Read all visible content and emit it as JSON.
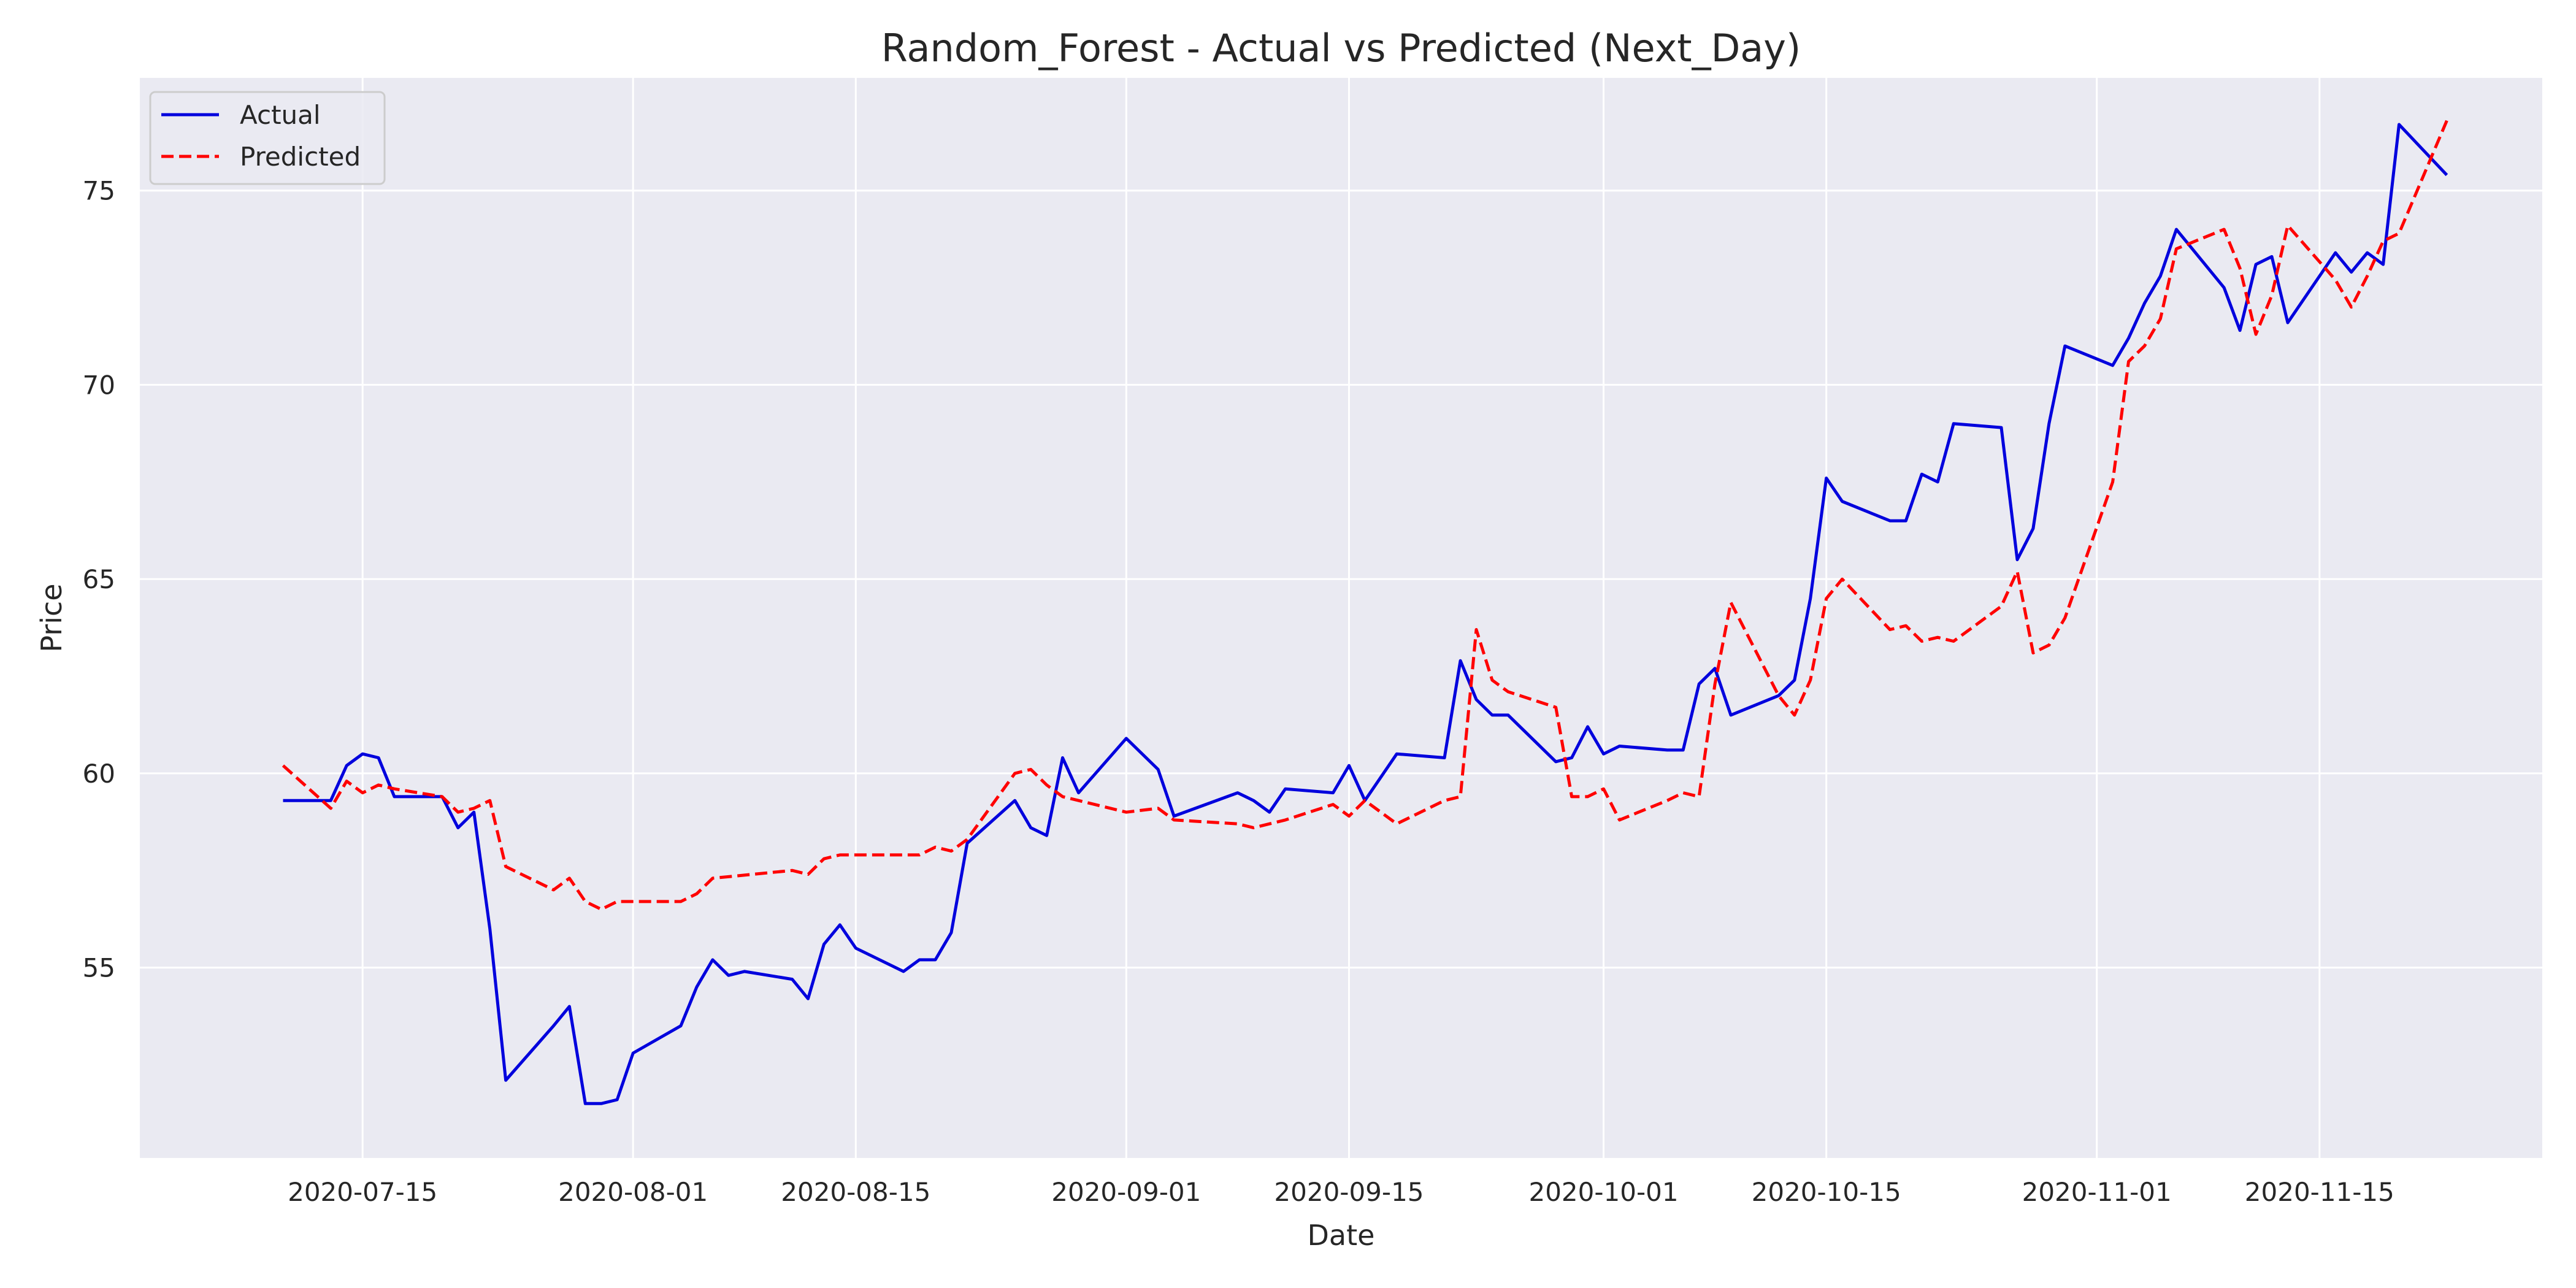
{
  "chart_data": {
    "type": "line",
    "title": "Random_Forest - Actual vs Predicted (Next_Day)",
    "xlabel": "Date",
    "ylabel": "Price",
    "xlim": [
      "2020-07-01",
      "2020-11-29"
    ],
    "ylim": [
      50.1,
      77.9
    ],
    "x_ticks": [
      "2020-07-15",
      "2020-08-01",
      "2020-08-15",
      "2020-09-01",
      "2020-09-15",
      "2020-10-01",
      "2020-10-15",
      "2020-11-01",
      "2020-11-15"
    ],
    "y_ticks": [
      55,
      60,
      65,
      70,
      75
    ],
    "grid": true,
    "legend_position": "top-left",
    "colors": {
      "background": "#eaeaf2",
      "grid": "#ffffff",
      "actual": "#0000dd",
      "predicted": "#ff0000"
    },
    "series": [
      {
        "name": "Actual",
        "style": "solid",
        "points": [
          [
            "2020-07-10",
            59.3
          ],
          [
            "2020-07-13",
            59.3
          ],
          [
            "2020-07-14",
            60.2
          ],
          [
            "2020-07-15",
            60.5
          ],
          [
            "2020-07-16",
            60.4
          ],
          [
            "2020-07-17",
            59.4
          ],
          [
            "2020-07-20",
            59.4
          ],
          [
            "2020-07-21",
            58.6
          ],
          [
            "2020-07-22",
            59.0
          ],
          [
            "2020-07-23",
            56.0
          ],
          [
            "2020-07-24",
            52.1
          ],
          [
            "2020-07-27",
            53.5
          ],
          [
            "2020-07-28",
            54.0
          ],
          [
            "2020-07-29",
            51.5
          ],
          [
            "2020-07-30",
            51.5
          ],
          [
            "2020-07-31",
            51.6
          ],
          [
            "2020-08-01",
            52.8
          ],
          [
            "2020-08-04",
            53.5
          ],
          [
            "2020-08-05",
            54.5
          ],
          [
            "2020-08-06",
            55.2
          ],
          [
            "2020-08-07",
            54.8
          ],
          [
            "2020-08-08",
            54.9
          ],
          [
            "2020-08-11",
            54.7
          ],
          [
            "2020-08-12",
            54.2
          ],
          [
            "2020-08-13",
            55.6
          ],
          [
            "2020-08-14",
            56.1
          ],
          [
            "2020-08-15",
            55.5
          ],
          [
            "2020-08-18",
            54.9
          ],
          [
            "2020-08-19",
            55.2
          ],
          [
            "2020-08-20",
            55.2
          ],
          [
            "2020-08-21",
            55.9
          ],
          [
            "2020-08-22",
            58.2
          ],
          [
            "2020-08-25",
            59.3
          ],
          [
            "2020-08-26",
            58.6
          ],
          [
            "2020-08-27",
            58.4
          ],
          [
            "2020-08-28",
            60.4
          ],
          [
            "2020-08-29",
            59.5
          ],
          [
            "2020-09-01",
            60.9
          ],
          [
            "2020-09-03",
            60.1
          ],
          [
            "2020-09-04",
            58.9
          ],
          [
            "2020-09-08",
            59.5
          ],
          [
            "2020-09-09",
            59.3
          ],
          [
            "2020-09-10",
            59.0
          ],
          [
            "2020-09-11",
            59.6
          ],
          [
            "2020-09-14",
            59.5
          ],
          [
            "2020-09-15",
            60.2
          ],
          [
            "2020-09-16",
            59.3
          ],
          [
            "2020-09-18",
            60.5
          ],
          [
            "2020-09-21",
            60.4
          ],
          [
            "2020-09-22",
            62.9
          ],
          [
            "2020-09-23",
            61.9
          ],
          [
            "2020-09-24",
            61.5
          ],
          [
            "2020-09-25",
            61.5
          ],
          [
            "2020-09-28",
            60.3
          ],
          [
            "2020-09-29",
            60.4
          ],
          [
            "2020-09-30",
            61.2
          ],
          [
            "2020-10-01",
            60.5
          ],
          [
            "2020-10-02",
            60.7
          ],
          [
            "2020-10-05",
            60.6
          ],
          [
            "2020-10-06",
            60.6
          ],
          [
            "2020-10-07",
            62.3
          ],
          [
            "2020-10-08",
            62.7
          ],
          [
            "2020-10-09",
            61.5
          ],
          [
            "2020-10-12",
            62.0
          ],
          [
            "2020-10-13",
            62.4
          ],
          [
            "2020-10-14",
            64.5
          ],
          [
            "2020-10-15",
            67.6
          ],
          [
            "2020-10-16",
            67.0
          ],
          [
            "2020-10-19",
            66.5
          ],
          [
            "2020-10-20",
            66.5
          ],
          [
            "2020-10-21",
            67.7
          ],
          [
            "2020-10-22",
            67.5
          ],
          [
            "2020-10-23",
            69.0
          ],
          [
            "2020-10-26",
            68.9
          ],
          [
            "2020-10-27",
            65.5
          ],
          [
            "2020-10-28",
            66.3
          ],
          [
            "2020-10-29",
            69.0
          ],
          [
            "2020-10-30",
            71.0
          ],
          [
            "2020-11-02",
            70.5
          ],
          [
            "2020-11-03",
            71.2
          ],
          [
            "2020-11-04",
            72.1
          ],
          [
            "2020-11-05",
            72.8
          ],
          [
            "2020-11-06",
            74.0
          ],
          [
            "2020-11-09",
            72.5
          ],
          [
            "2020-11-10",
            71.4
          ],
          [
            "2020-11-11",
            73.1
          ],
          [
            "2020-11-12",
            73.3
          ],
          [
            "2020-11-13",
            71.6
          ],
          [
            "2020-11-16",
            73.4
          ],
          [
            "2020-11-17",
            72.9
          ],
          [
            "2020-11-18",
            73.4
          ],
          [
            "2020-11-19",
            73.1
          ],
          [
            "2020-11-20",
            76.7
          ],
          [
            "2020-11-23",
            75.4
          ]
        ]
      },
      {
        "name": "Predicted",
        "style": "dashed",
        "points": [
          [
            "2020-07-10",
            60.2
          ],
          [
            "2020-07-13",
            59.1
          ],
          [
            "2020-07-14",
            59.8
          ],
          [
            "2020-07-15",
            59.5
          ],
          [
            "2020-07-16",
            59.7
          ],
          [
            "2020-07-17",
            59.6
          ],
          [
            "2020-07-20",
            59.4
          ],
          [
            "2020-07-21",
            59.0
          ],
          [
            "2020-07-22",
            59.1
          ],
          [
            "2020-07-23",
            59.3
          ],
          [
            "2020-07-24",
            57.6
          ],
          [
            "2020-07-27",
            57.0
          ],
          [
            "2020-07-28",
            57.3
          ],
          [
            "2020-07-29",
            56.7
          ],
          [
            "2020-07-30",
            56.5
          ],
          [
            "2020-07-31",
            56.7
          ],
          [
            "2020-08-01",
            56.7
          ],
          [
            "2020-08-04",
            56.7
          ],
          [
            "2020-08-05",
            56.9
          ],
          [
            "2020-08-06",
            57.3
          ],
          [
            "2020-08-11",
            57.5
          ],
          [
            "2020-08-12",
            57.4
          ],
          [
            "2020-08-13",
            57.8
          ],
          [
            "2020-08-14",
            57.9
          ],
          [
            "2020-08-19",
            57.9
          ],
          [
            "2020-08-20",
            58.1
          ],
          [
            "2020-08-21",
            58.0
          ],
          [
            "2020-08-22",
            58.3
          ],
          [
            "2020-08-25",
            60.0
          ],
          [
            "2020-08-26",
            60.1
          ],
          [
            "2020-08-27",
            59.7
          ],
          [
            "2020-08-28",
            59.4
          ],
          [
            "2020-08-29",
            59.3
          ],
          [
            "2020-09-01",
            59.0
          ],
          [
            "2020-09-03",
            59.1
          ],
          [
            "2020-09-04",
            58.8
          ],
          [
            "2020-09-08",
            58.7
          ],
          [
            "2020-09-09",
            58.6
          ],
          [
            "2020-09-10",
            58.7
          ],
          [
            "2020-09-11",
            58.8
          ],
          [
            "2020-09-14",
            59.2
          ],
          [
            "2020-09-15",
            58.9
          ],
          [
            "2020-09-16",
            59.3
          ],
          [
            "2020-09-18",
            58.7
          ],
          [
            "2020-09-21",
            59.3
          ],
          [
            "2020-09-22",
            59.4
          ],
          [
            "2020-09-23",
            63.7
          ],
          [
            "2020-09-24",
            62.4
          ],
          [
            "2020-09-25",
            62.1
          ],
          [
            "2020-09-28",
            61.7
          ],
          [
            "2020-09-29",
            59.4
          ],
          [
            "2020-09-30",
            59.4
          ],
          [
            "2020-10-01",
            59.6
          ],
          [
            "2020-10-02",
            58.8
          ],
          [
            "2020-10-05",
            59.3
          ],
          [
            "2020-10-06",
            59.5
          ],
          [
            "2020-10-07",
            59.4
          ],
          [
            "2020-10-08",
            62.3
          ],
          [
            "2020-10-09",
            64.4
          ],
          [
            "2020-10-12",
            62.0
          ],
          [
            "2020-10-13",
            61.5
          ],
          [
            "2020-10-14",
            62.4
          ],
          [
            "2020-10-15",
            64.5
          ],
          [
            "2020-10-16",
            65.0
          ],
          [
            "2020-10-19",
            63.7
          ],
          [
            "2020-10-20",
            63.8
          ],
          [
            "2020-10-21",
            63.4
          ],
          [
            "2020-10-22",
            63.5
          ],
          [
            "2020-10-23",
            63.4
          ],
          [
            "2020-10-26",
            64.3
          ],
          [
            "2020-10-27",
            65.2
          ],
          [
            "2020-10-28",
            63.1
          ],
          [
            "2020-10-29",
            63.3
          ],
          [
            "2020-10-30",
            64.0
          ],
          [
            "2020-11-02",
            67.5
          ],
          [
            "2020-11-03",
            70.6
          ],
          [
            "2020-11-04",
            71.0
          ],
          [
            "2020-11-05",
            71.7
          ],
          [
            "2020-11-06",
            73.5
          ],
          [
            "2020-11-09",
            74.0
          ],
          [
            "2020-11-10",
            73.0
          ],
          [
            "2020-11-11",
            71.3
          ],
          [
            "2020-11-12",
            72.3
          ],
          [
            "2020-11-13",
            74.1
          ],
          [
            "2020-11-16",
            72.7
          ],
          [
            "2020-11-17",
            72.0
          ],
          [
            "2020-11-18",
            72.8
          ],
          [
            "2020-11-19",
            73.7
          ],
          [
            "2020-11-20",
            73.9
          ],
          [
            "2020-11-23",
            76.8
          ]
        ]
      }
    ]
  }
}
